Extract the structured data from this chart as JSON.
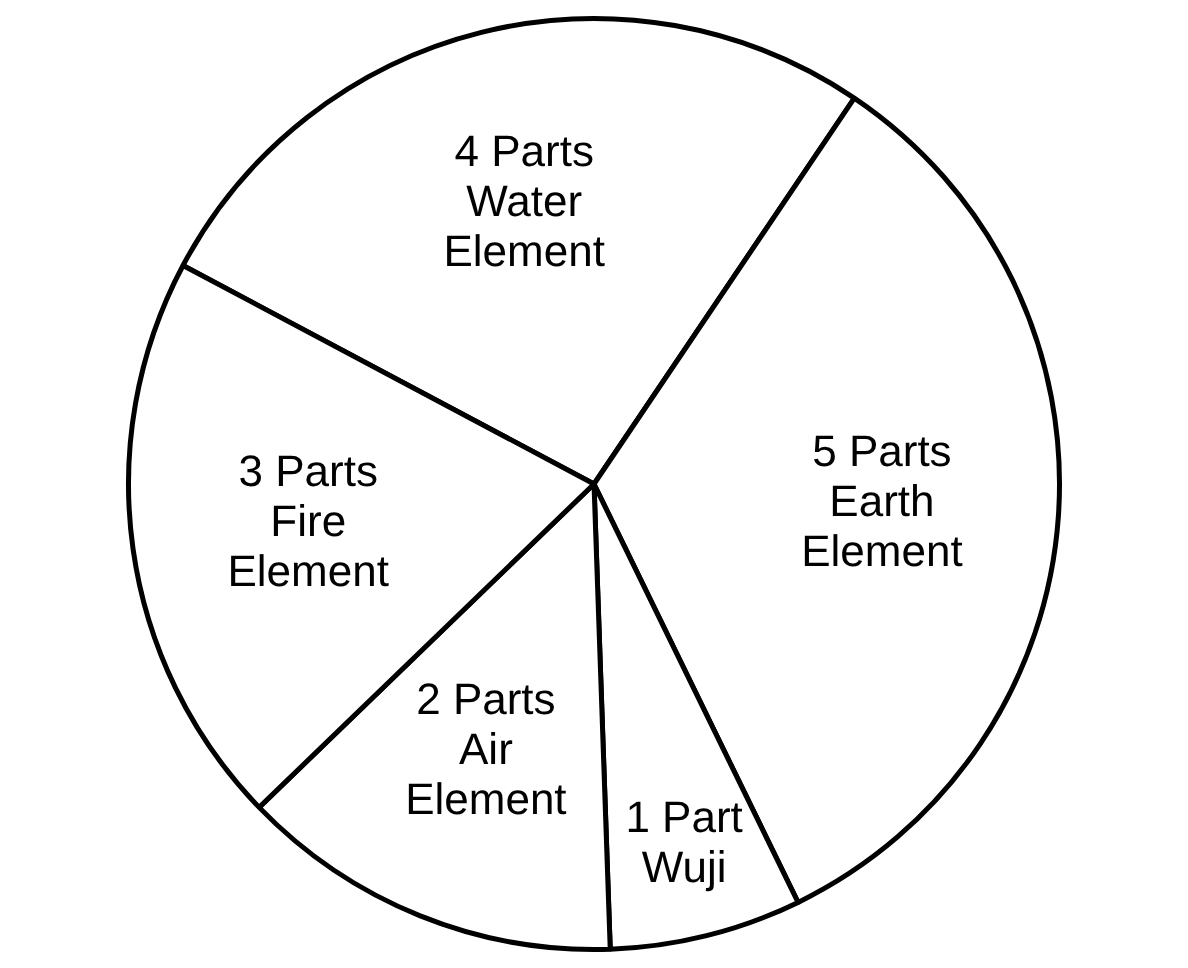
{
  "chart_data": {
    "type": "pie",
    "categories": [
      "4 Parts Water Element",
      "5 Parts Earth Element",
      "1 Part Wuji",
      "2 Parts Air Element",
      "3 Parts Fire Element"
    ],
    "values": [
      4,
      5,
      1,
      2,
      3
    ],
    "colors": [
      "#ffffff",
      "#ffffff",
      "#ffffff",
      "#ffffff",
      "#ffffff"
    ]
  }
}
